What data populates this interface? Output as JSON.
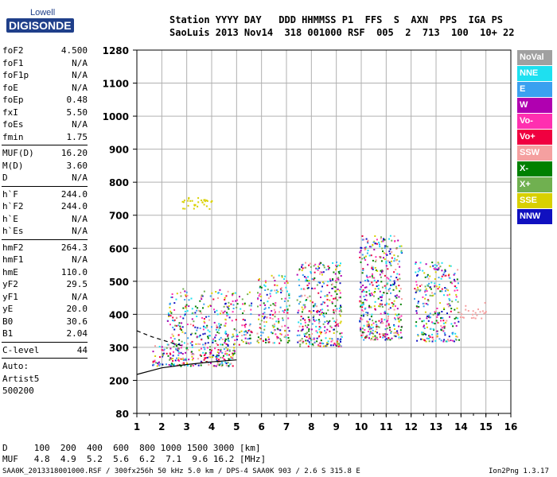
{
  "logo": {
    "line1": "Lowell",
    "line2": "DIGISONDE"
  },
  "header": {
    "columns": "Station YYYY DAY   DDD HHMMSS P1  FFS  S  AXN  PPS  IGA PS",
    "values": "SaoLuis 2013 Nov14  318 001000 RSF  005  2  713  100  10+ 22"
  },
  "params_group1": [
    {
      "name": "foF2",
      "value": "4.500"
    },
    {
      "name": "foF1",
      "value": "N/A"
    },
    {
      "name": "foF1p",
      "value": "N/A"
    },
    {
      "name": "foE",
      "value": "N/A"
    },
    {
      "name": "foEp",
      "value": "0.48"
    },
    {
      "name": "fxI",
      "value": "5.50"
    },
    {
      "name": "foEs",
      "value": "N/A"
    },
    {
      "name": "fmin",
      "value": "1.75"
    }
  ],
  "params_group2": [
    {
      "name": "MUF(D)",
      "value": "16.20"
    },
    {
      "name": "M(D)",
      "value": "3.60"
    },
    {
      "name": "D",
      "value": "N/A"
    }
  ],
  "params_group3": [
    {
      "name": "h`F",
      "value": "244.0"
    },
    {
      "name": "h`F2",
      "value": "244.0"
    },
    {
      "name": "h`E",
      "value": "N/A"
    },
    {
      "name": "h`Es",
      "value": "N/A"
    }
  ],
  "params_group4": [
    {
      "name": "hmF2",
      "value": "264.3"
    },
    {
      "name": "hmF1",
      "value": "N/A"
    },
    {
      "name": "hmE",
      "value": "110.0"
    },
    {
      "name": "yF2",
      "value": "29.5"
    },
    {
      "name": "yF1",
      "value": "N/A"
    },
    {
      "name": "yE",
      "value": "20.0"
    },
    {
      "name": "B0",
      "value": "30.6"
    },
    {
      "name": "B1",
      "value": "2.04"
    }
  ],
  "params_group5": [
    {
      "name": "C-level",
      "value": "44"
    }
  ],
  "scaling": {
    "line1": "Auto:",
    "line2": "Artist5",
    "line3": "500200"
  },
  "legend": [
    {
      "label": "NoVal",
      "color": "#a0a0a0"
    },
    {
      "label": "NNE",
      "color": "#1ee0f0"
    },
    {
      "label": "E",
      "color": "#3aa0f0"
    },
    {
      "label": "W",
      "color": "#b000b0"
    },
    {
      "label": "Vo-",
      "color": "#ff2fb0"
    },
    {
      "label": "Vo+",
      "color": "#f00040"
    },
    {
      "label": "SSW",
      "color": "#f5a0a0"
    },
    {
      "label": "X-",
      "color": "#008000"
    },
    {
      "label": "X+",
      "color": "#70b050"
    },
    {
      "label": "SSE",
      "color": "#d8d000"
    },
    {
      "label": "NNW",
      "color": "#1010c0"
    }
  ],
  "muf_table": {
    "d_line": "D     100  200  400  600  800 1000 1500 3000 [km]",
    "muf_line": "MUF   4.8  4.9  5.2  5.6  6.2  7.1  9.6 16.2 [MHz]"
  },
  "footer": {
    "left": "SAA0K_2013318001000.RSF / 300fx256h 50 kHz 5.0 km / DPS-4 SAA0K 903 / 2.6 S 315.8 E",
    "right": "Ion2Png 1.3.17"
  },
  "chart_data": {
    "type": "scatter",
    "x_ticks": [
      1,
      2,
      3,
      4,
      5,
      6,
      7,
      8,
      9,
      10,
      11,
      12,
      13,
      14,
      15,
      16
    ],
    "y_ticks": [
      80,
      200,
      300,
      400,
      500,
      600,
      700,
      800,
      900,
      1000,
      1100,
      1280
    ],
    "xlim": [
      1,
      16
    ],
    "ylim": [
      80,
      1280
    ],
    "grid": true,
    "legend_position": "right",
    "regions": [
      {
        "f": [
          1.6,
          4.9
        ],
        "h": [
          245,
          310
        ],
        "density": 0.75,
        "color": "mixed"
      },
      {
        "f": [
          2.2,
          4.7
        ],
        "h": [
          310,
          480
        ],
        "density": 0.35,
        "color": "mixed"
      },
      {
        "f": [
          2.8,
          4.1
        ],
        "h": [
          720,
          755
        ],
        "density": 0.5,
        "color": "#d8d000"
      },
      {
        "f": [
          4.5,
          5.6
        ],
        "h": [
          310,
          470
        ],
        "density": 0.4,
        "color": "mixed"
      },
      {
        "f": [
          5.8,
          7.1
        ],
        "h": [
          315,
          520
        ],
        "density": 0.45,
        "color": "mixed"
      },
      {
        "f": [
          7.4,
          9.2
        ],
        "h": [
          305,
          560
        ],
        "density": 0.55,
        "color": "mixed"
      },
      {
        "f": [
          9.9,
          11.6
        ],
        "h": [
          325,
          640
        ],
        "density": 0.55,
        "color": "mixed"
      },
      {
        "f": [
          12.1,
          13.9
        ],
        "h": [
          320,
          560
        ],
        "density": 0.45,
        "color": "mixed"
      },
      {
        "f": [
          13.9,
          15.0
        ],
        "h": [
          390,
          440
        ],
        "density": 0.3,
        "color": "#f5a0a0"
      }
    ],
    "trace_lines": [
      {
        "style": "solid",
        "points": [
          [
            1.0,
            218
          ],
          [
            2.0,
            238
          ],
          [
            3.0,
            248
          ],
          [
            4.0,
            256
          ],
          [
            5.0,
            262
          ]
        ]
      },
      {
        "style": "dashed",
        "points": [
          [
            1.0,
            350
          ],
          [
            1.6,
            332
          ],
          [
            2.2,
            318
          ],
          [
            2.8,
            305
          ]
        ]
      }
    ]
  }
}
